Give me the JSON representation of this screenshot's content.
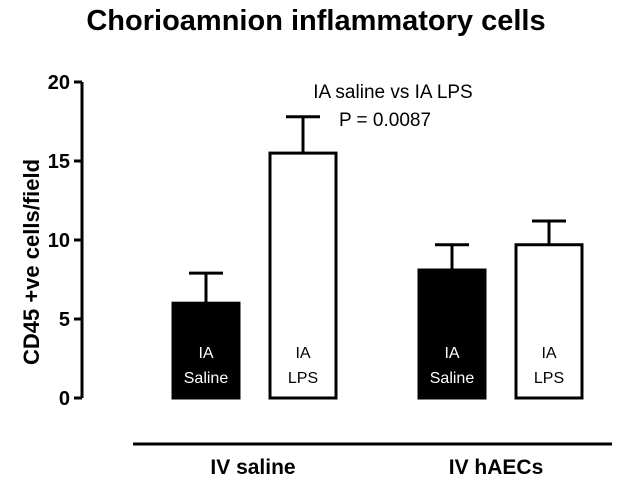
{
  "chart_data": {
    "type": "bar",
    "title": "Chorioamnion inflammatory cells",
    "ylabel": "CD45 +ve cells/field",
    "xlabel": "",
    "ylim": [
      0,
      20
    ],
    "yticks": [
      0,
      5,
      10,
      15,
      20
    ],
    "grid": false,
    "groups": [
      {
        "label": "IV saline",
        "bars": [
          {
            "label_line1": "IA",
            "label_line2": "Saline",
            "value": 6.0,
            "error": 1.9,
            "fill": "#000000"
          },
          {
            "label_line1": "IA",
            "label_line2": "LPS",
            "value": 15.5,
            "error": 2.3,
            "fill": "#ffffff"
          }
        ]
      },
      {
        "label": "IV hAECs",
        "bars": [
          {
            "label_line1": "IA",
            "label_line2": "Saline",
            "value": 8.1,
            "error": 1.6,
            "fill": "#000000"
          },
          {
            "label_line1": "IA",
            "label_line2": "LPS",
            "value": 9.7,
            "error": 1.5,
            "fill": "#ffffff"
          }
        ]
      }
    ],
    "annotation": {
      "line1": "IA saline vs IA LPS",
      "line2": "P = 0.0087"
    }
  }
}
